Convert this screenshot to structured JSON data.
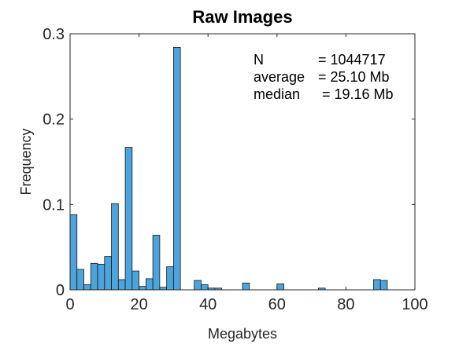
{
  "chart_data": {
    "type": "bar",
    "title": "Raw Images",
    "xlabel": "Megabytes",
    "ylabel": "Frequency",
    "xlim": [
      0,
      100
    ],
    "ylim": [
      0,
      0.3
    ],
    "bin_width": 2,
    "xticks": [
      "0",
      "20",
      "40",
      "60",
      "80",
      "100"
    ],
    "yticks": [
      "0",
      "0.1",
      "0.2",
      "0.3"
    ],
    "grid": false,
    "bar_color": "#4DA3DB",
    "bar_edge_color": "#1a1a1a",
    "bins": [
      {
        "x": 0,
        "value": 0.088
      },
      {
        "x": 2,
        "value": 0.024
      },
      {
        "x": 4,
        "value": 0.006
      },
      {
        "x": 6,
        "value": 0.031
      },
      {
        "x": 8,
        "value": 0.03
      },
      {
        "x": 10,
        "value": 0.039
      },
      {
        "x": 12,
        "value": 0.101
      },
      {
        "x": 14,
        "value": 0.012
      },
      {
        "x": 16,
        "value": 0.167
      },
      {
        "x": 18,
        "value": 0.022
      },
      {
        "x": 20,
        "value": 0.004
      },
      {
        "x": 22,
        "value": 0.013
      },
      {
        "x": 24,
        "value": 0.064
      },
      {
        "x": 26,
        "value": 0.003
      },
      {
        "x": 28,
        "value": 0.027
      },
      {
        "x": 30,
        "value": 0.284
      },
      {
        "x": 36,
        "value": 0.011
      },
      {
        "x": 38,
        "value": 0.006
      },
      {
        "x": 40,
        "value": 0.002
      },
      {
        "x": 42,
        "value": 0.002
      },
      {
        "x": 50,
        "value": 0.008
      },
      {
        "x": 60,
        "value": 0.007
      },
      {
        "x": 72,
        "value": 0.002
      },
      {
        "x": 88,
        "value": 0.012
      },
      {
        "x": 90,
        "value": 0.011
      }
    ],
    "annotations": [
      {
        "label": "N",
        "value": "= 1044717"
      },
      {
        "label": "average",
        "value": "= 25.10 Mb"
      },
      {
        "label": "median",
        "value": " = 19.16 Mb"
      }
    ]
  }
}
